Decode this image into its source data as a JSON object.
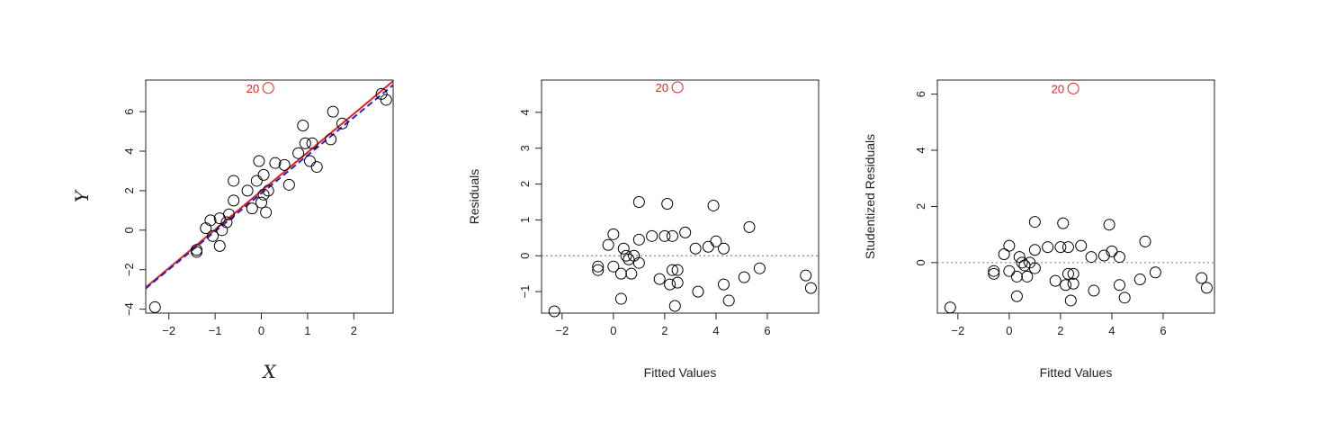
{
  "chart_data": [
    {
      "type": "scatter",
      "title": "",
      "xlabel": "X",
      "ylabel": "Y",
      "label_style": "serif",
      "xlim": [
        -2.5,
        2.85
      ],
      "ylim": [
        -4.2,
        7.6
      ],
      "xticks": [
        -2,
        -1,
        0,
        1,
        2
      ],
      "yticks": [
        -4,
        -2,
        0,
        2,
        4,
        6
      ],
      "point_color": "#000000",
      "points": [
        [
          -2.3,
          -3.9
        ],
        [
          -1.4,
          -1.1
        ],
        [
          -1.4,
          -1.0
        ],
        [
          -1.2,
          0.1
        ],
        [
          -1.1,
          0.5
        ],
        [
          -1.05,
          -0.3
        ],
        [
          -0.9,
          -0.8
        ],
        [
          -0.9,
          0.6
        ],
        [
          -0.85,
          0.0
        ],
        [
          -0.75,
          0.4
        ],
        [
          -0.7,
          0.8
        ],
        [
          -0.6,
          2.5
        ],
        [
          -0.6,
          1.5
        ],
        [
          -0.3,
          2.0
        ],
        [
          -0.2,
          1.1
        ],
        [
          -0.1,
          2.5
        ],
        [
          -0.05,
          3.5
        ],
        [
          0.0,
          1.4
        ],
        [
          0.05,
          1.8
        ],
        [
          0.05,
          2.8
        ],
        [
          0.1,
          0.9
        ],
        [
          0.15,
          2.0
        ],
        [
          0.3,
          3.4
        ],
        [
          0.5,
          3.3
        ],
        [
          0.6,
          2.3
        ],
        [
          0.8,
          3.9
        ],
        [
          0.9,
          5.3
        ],
        [
          0.95,
          4.4
        ],
        [
          1.05,
          3.5
        ],
        [
          1.1,
          4.4
        ],
        [
          1.2,
          3.2
        ],
        [
          1.5,
          4.6
        ],
        [
          1.55,
          6.0
        ],
        [
          1.75,
          5.4
        ],
        [
          2.6,
          6.9
        ],
        [
          2.7,
          6.6
        ]
      ],
      "outlier": {
        "label": "20",
        "x": 0.15,
        "y": 7.2,
        "color": "#e8201c"
      },
      "lines": [
        {
          "name": "",
          "color": "#e8201c",
          "style": "solid",
          "x": [
            -2.5,
            2.85
          ],
          "y": [
            -2.9,
            7.55
          ]
        },
        {
          "name": "",
          "color": "#2323c8",
          "style": "dashed",
          "x": [
            -2.5,
            2.85
          ],
          "y": [
            -2.95,
            7.35
          ]
        }
      ]
    },
    {
      "type": "scatter",
      "title": "",
      "xlabel": "Fitted Values",
      "ylabel": "Residuals",
      "label_style": "sans",
      "xlim": [
        -2.8,
        8.0
      ],
      "ylim": [
        -1.6,
        4.9
      ],
      "xticks": [
        -2,
        0,
        2,
        4,
        6
      ],
      "yticks": [
        -1,
        0,
        1,
        2,
        3,
        4
      ],
      "point_color": "#000000",
      "points": [
        [
          -2.3,
          -1.55
        ],
        [
          -0.6,
          -0.3
        ],
        [
          -0.6,
          -0.4
        ],
        [
          -0.2,
          0.3
        ],
        [
          0.0,
          0.6
        ],
        [
          0.0,
          -0.3
        ],
        [
          0.3,
          -1.2
        ],
        [
          0.3,
          -0.5
        ],
        [
          0.4,
          0.2
        ],
        [
          0.5,
          0.0
        ],
        [
          0.6,
          -0.1
        ],
        [
          0.7,
          -0.5
        ],
        [
          0.8,
          0.0
        ],
        [
          1.0,
          -0.2
        ],
        [
          1.0,
          1.5
        ],
        [
          1.0,
          0.45
        ],
        [
          1.5,
          0.55
        ],
        [
          1.8,
          -0.65
        ],
        [
          2.0,
          0.55
        ],
        [
          2.1,
          1.45
        ],
        [
          2.2,
          -0.8
        ],
        [
          2.3,
          0.55
        ],
        [
          2.3,
          -0.4
        ],
        [
          2.4,
          -1.4
        ],
        [
          2.5,
          -0.75
        ],
        [
          2.5,
          -0.4
        ],
        [
          2.8,
          0.65
        ],
        [
          3.2,
          0.2
        ],
        [
          3.3,
          -1.0
        ],
        [
          3.7,
          0.25
        ],
        [
          3.9,
          1.4
        ],
        [
          4.0,
          0.4
        ],
        [
          4.3,
          0.2
        ],
        [
          4.3,
          -0.8
        ],
        [
          4.5,
          -1.25
        ],
        [
          5.1,
          -0.6
        ],
        [
          5.3,
          0.8
        ],
        [
          5.7,
          -0.35
        ],
        [
          7.5,
          -0.55
        ],
        [
          7.7,
          -0.9
        ]
      ],
      "outlier": {
        "label": "20",
        "x": 2.5,
        "y": 4.7,
        "color": "#e8201c"
      },
      "hline": {
        "y": 0,
        "style": "dotted",
        "color": "#888888"
      }
    },
    {
      "type": "scatter",
      "title": "",
      "xlabel": "Fitted Values",
      "ylabel": "Studentized Residuals",
      "label_style": "sans",
      "xlim": [
        -2.8,
        8.0
      ],
      "ylim": [
        -1.8,
        6.5
      ],
      "xticks": [
        -2,
        0,
        2,
        4,
        6
      ],
      "yticks": [
        0,
        2,
        4,
        6
      ],
      "point_color": "#000000",
      "points": [
        [
          -2.3,
          -1.6
        ],
        [
          -0.6,
          -0.3
        ],
        [
          -0.6,
          -0.4
        ],
        [
          -0.2,
          0.3
        ],
        [
          0.0,
          0.6
        ],
        [
          0.0,
          -0.3
        ],
        [
          0.3,
          -1.2
        ],
        [
          0.3,
          -0.5
        ],
        [
          0.4,
          0.2
        ],
        [
          0.5,
          0.0
        ],
        [
          0.6,
          -0.1
        ],
        [
          0.7,
          -0.5
        ],
        [
          0.8,
          0.0
        ],
        [
          1.0,
          -0.2
        ],
        [
          1.0,
          1.45
        ],
        [
          1.0,
          0.45
        ],
        [
          1.5,
          0.55
        ],
        [
          1.8,
          -0.65
        ],
        [
          2.0,
          0.55
        ],
        [
          2.1,
          1.4
        ],
        [
          2.2,
          -0.8
        ],
        [
          2.3,
          0.55
        ],
        [
          2.3,
          -0.4
        ],
        [
          2.4,
          -1.35
        ],
        [
          2.5,
          -0.75
        ],
        [
          2.5,
          -0.4
        ],
        [
          2.8,
          0.6
        ],
        [
          3.2,
          0.2
        ],
        [
          3.3,
          -1.0
        ],
        [
          3.7,
          0.25
        ],
        [
          3.9,
          1.35
        ],
        [
          4.0,
          0.4
        ],
        [
          4.3,
          0.2
        ],
        [
          4.3,
          -0.8
        ],
        [
          4.5,
          -1.25
        ],
        [
          5.1,
          -0.6
        ],
        [
          5.3,
          0.75
        ],
        [
          5.7,
          -0.35
        ],
        [
          7.5,
          -0.55
        ],
        [
          7.7,
          -0.9
        ]
      ],
      "outlier": {
        "label": "20",
        "x": 2.5,
        "y": 6.2,
        "color": "#e8201c"
      },
      "hline": {
        "y": 0,
        "style": "dotted",
        "color": "#888888"
      }
    }
  ]
}
